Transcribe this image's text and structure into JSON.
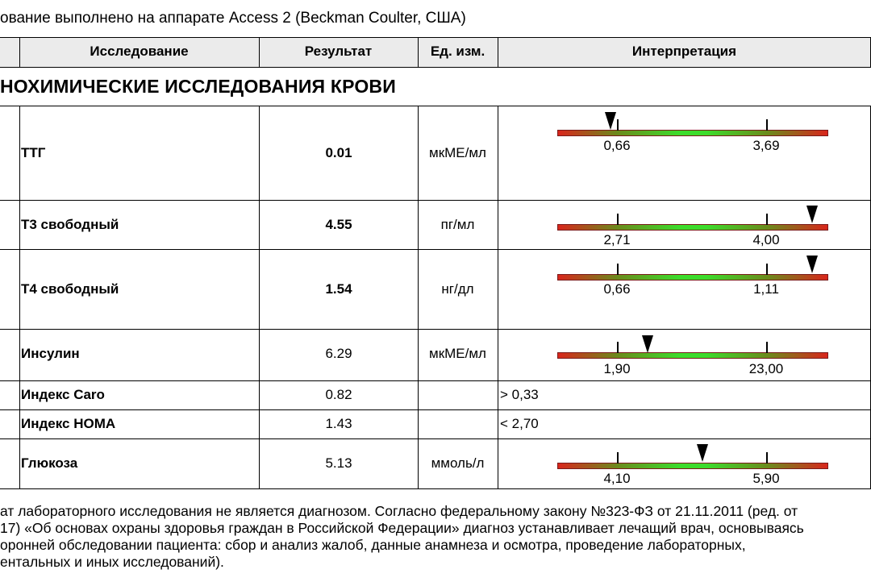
{
  "header_line": "ование выполнено на аппарате Access 2 (Beckman Coulter, США)",
  "table": {
    "columns": [
      "Исследование",
      "Результат",
      "Ед. изм.",
      "Интерпретация"
    ],
    "section_title": "НОХИМИЧЕСКИЕ ИССЛЕДОВАНИЯ КРОВИ",
    "rows": [
      {
        "name": "ТТГ",
        "result": "0.01",
        "unit": "мкМЕ/мл",
        "low": "0,66",
        "high": "3,69",
        "marker_level": -0.05
      },
      {
        "name": "Т3 свободный",
        "result": "4.55",
        "unit": "пг/мл",
        "low": "2,71",
        "high": "4,00",
        "marker_level": 1.3
      },
      {
        "name": "Т4 свободный",
        "result": "1.54",
        "unit": "нг/дл",
        "low": "0,66",
        "high": "1,11",
        "marker_level": 1.3
      },
      {
        "name": "Инсулин",
        "result": "6.29",
        "unit": "мкМЕ/мл",
        "low": "1,90",
        "high": "23,00",
        "marker_level": 0.2
      },
      {
        "name": "Индекс Caro",
        "result": "0.82",
        "unit": "",
        "reference": "> 0,33"
      },
      {
        "name": "Индекс HOMA",
        "result": "1.43",
        "unit": "",
        "reference": "< 2,70"
      },
      {
        "name": "Глюкоза",
        "result": "5.13",
        "unit": "ммоль/л",
        "low": "4,10",
        "high": "5,90",
        "marker_level": 0.57
      }
    ]
  },
  "footer": [
    "ат лабораторного исследования не является диагнозом. Согласно федеральному закону №323-ФЗ от 21.11.2011 (ред. от",
    "17) «Об основах охраны здоровья граждан в Российской Федерации» диагноз устанавливает лечащий врач, основываясь",
    "оронней обследовании пациента: сбор и анализ жалоб, данные анамнеза и осмотра, проведение лабораторных,",
    "ентальных и иных исследований)."
  ]
}
